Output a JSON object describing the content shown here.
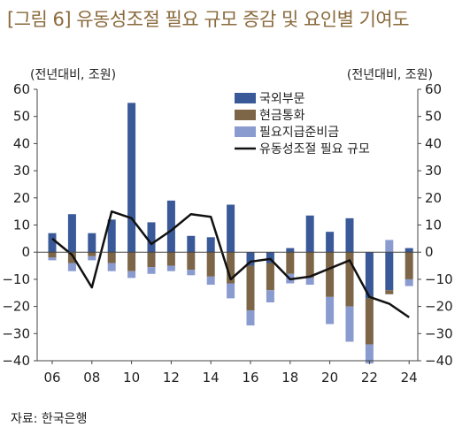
{
  "title": "[그림 6] 유동성조절 필요 규모 증감 및 요인별 기여도",
  "source": "자료: 한국은행",
  "chart_data": {
    "type": "bar",
    "stacked": true,
    "unit_left": "(전년대비, 조원)",
    "unit_right": "(전년대비, 조원)",
    "x": [
      2006,
      2007,
      2008,
      2009,
      2010,
      2011,
      2012,
      2013,
      2014,
      2015,
      2016,
      2017,
      2018,
      2019,
      2020,
      2021,
      2022,
      2023,
      2024
    ],
    "xticks": [
      "06",
      "08",
      "10",
      "12",
      "14",
      "16",
      "18",
      "20",
      "22",
      "24"
    ],
    "xtick_years": [
      2006,
      2008,
      2010,
      2012,
      2014,
      2016,
      2018,
      2020,
      2022,
      2024
    ],
    "yticks": [
      "60",
      "50",
      "40",
      "30",
      "20",
      "10",
      "0",
      "−10",
      "−20",
      "−30",
      "−40"
    ],
    "ylim": [
      -40,
      60
    ],
    "legend_position": "top-right",
    "series": [
      {
        "name": "국외부문",
        "kind": "bar",
        "color": "#3a5998",
        "values": [
          7,
          14,
          7,
          12,
          55,
          11,
          19,
          6,
          5.5,
          17.5,
          -5,
          -4,
          1.5,
          13.5,
          7.5,
          12.5,
          -17,
          -14,
          1.5
        ]
      },
      {
        "name": "현금통화",
        "kind": "bar",
        "color": "#7d6647",
        "values": [
          -2,
          -4,
          -1.5,
          -4,
          -7,
          -5.5,
          -5,
          -6.5,
          -9,
          -11.5,
          -16.5,
          -10,
          -8,
          -9.5,
          -16.5,
          -20,
          -17,
          -1.5,
          -10
        ]
      },
      {
        "name": "필요지급준비금",
        "kind": "bar",
        "color": "#8a9bd0",
        "values": [
          -1,
          -3,
          -1.5,
          -3,
          -2.5,
          -2.5,
          -2,
          -2,
          -3,
          -5.5,
          -5.5,
          -4.5,
          -3.5,
          -2.5,
          -10,
          -13,
          -7,
          4.5,
          -2.5
        ]
      },
      {
        "name": "유동성조절 필요 규모",
        "kind": "line",
        "color": "#111111",
        "values": [
          5,
          -1,
          -13,
          15,
          12.5,
          3,
          8,
          14,
          13,
          -10,
          -3.5,
          -2.5,
          -10,
          -9,
          -6,
          -3,
          -16.5,
          -19,
          -24
        ]
      }
    ]
  }
}
